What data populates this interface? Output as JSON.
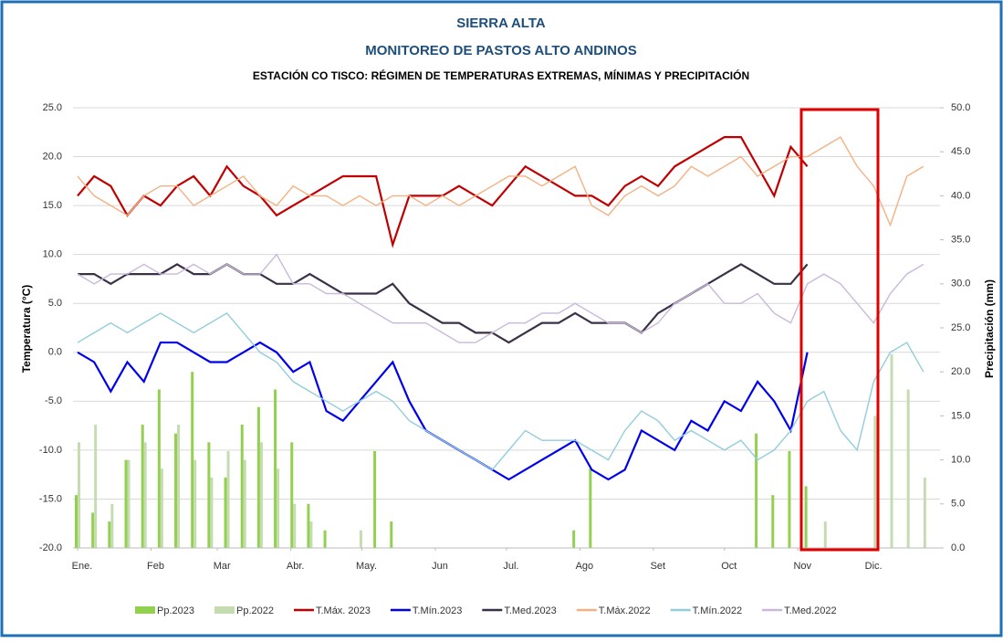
{
  "chart_data": {
    "type": "combo",
    "title": "SIERRA ALTA",
    "subtitle": "MONITOREO DE PASTOS ALTO ANDINOS",
    "caption": "ESTACIÓN CO TISCO: RÉGIMEN DE TEMPERATURAS EXTREMAS, MÍNIMAS Y PRECIPITACIÓN",
    "y_label": "Temperatura (°C)",
    "y2_label": "Precipitación (mm)",
    "x": [
      1,
      8,
      15,
      22,
      29,
      36,
      43,
      50,
      57,
      64,
      71,
      78,
      85,
      92,
      99,
      106,
      113,
      120,
      127,
      134,
      141,
      148,
      155,
      162,
      169,
      176,
      183,
      190,
      197,
      204,
      211,
      218,
      225,
      232,
      239,
      246,
      253,
      260,
      267,
      274,
      281,
      288,
      295,
      302,
      309,
      316,
      323,
      330,
      337,
      344,
      351,
      358
    ],
    "xlim": [
      1,
      365
    ],
    "xticks": [
      {
        "value": 1,
        "label": "Ene."
      },
      {
        "value": 32,
        "label": "Feb"
      },
      {
        "value": 60,
        "label": "Mar"
      },
      {
        "value": 91,
        "label": "Abr."
      },
      {
        "value": 121,
        "label": "May."
      },
      {
        "value": 152,
        "label": "Jun"
      },
      {
        "value": 182,
        "label": "Jul."
      },
      {
        "value": 213,
        "label": "Ago"
      },
      {
        "value": 244,
        "label": "Set"
      },
      {
        "value": 274,
        "label": "Oct"
      },
      {
        "value": 305,
        "label": "Nov"
      },
      {
        "value": 335,
        "label": "Dic."
      }
    ],
    "ylim": [
      -20,
      25
    ],
    "yticks": [
      {
        "value": -20,
        "label": "-20.0"
      },
      {
        "value": -15,
        "label": "-15.0"
      },
      {
        "value": -10,
        "label": "-10.0"
      },
      {
        "value": -5,
        "label": "-5.0"
      },
      {
        "value": 0,
        "label": "0.0"
      },
      {
        "value": 5,
        "label": "5.0"
      },
      {
        "value": 10,
        "label": "10.0"
      },
      {
        "value": 15,
        "label": "15.0"
      },
      {
        "value": 20,
        "label": "20.0"
      },
      {
        "value": 25,
        "label": "25.0"
      }
    ],
    "y2lim": [
      0,
      50
    ],
    "y2ticks": [
      {
        "value": 0,
        "label": "0.0"
      },
      {
        "value": 5,
        "label": "5.0"
      },
      {
        "value": 10,
        "label": "10.0"
      },
      {
        "value": 15,
        "label": "15.0"
      },
      {
        "value": 20,
        "label": "20.0"
      },
      {
        "value": 25,
        "label": "25.0"
      },
      {
        "value": 30,
        "label": "30.0"
      },
      {
        "value": 35,
        "label": "35.0"
      },
      {
        "value": 40,
        "label": "40.0"
      },
      {
        "value": 45,
        "label": "45.0"
      },
      {
        "value": 50,
        "label": "50.0"
      }
    ],
    "grid": true,
    "series": [
      {
        "name": "Pp.2023",
        "type": "bar",
        "axis": "y2",
        "color": "#92d050",
        "values": [
          6,
          4,
          3,
          10,
          14,
          18,
          13,
          20,
          12,
          8,
          14,
          16,
          18,
          12,
          5,
          2,
          0,
          0,
          11,
          3,
          0,
          0,
          0,
          0,
          0,
          0,
          0,
          0,
          0,
          0,
          2,
          9,
          0,
          0,
          0,
          0,
          0,
          0,
          0,
          0,
          0,
          13,
          6,
          11,
          7,
          null,
          null,
          null,
          null,
          null,
          null,
          null
        ]
      },
      {
        "name": "Pp.2022",
        "type": "bar",
        "axis": "y2",
        "color": "#c5dcb0",
        "values": [
          12,
          14,
          5,
          10,
          12,
          9,
          14,
          10,
          8,
          11,
          10,
          12,
          9,
          5,
          3,
          0,
          0,
          2,
          0,
          0,
          0,
          0,
          0,
          0,
          0,
          0,
          0,
          0,
          0,
          0,
          0,
          0,
          0,
          0,
          0,
          0,
          0,
          0,
          0,
          0,
          0,
          0,
          0,
          0,
          0,
          3,
          0,
          0,
          15,
          22,
          18,
          8
        ]
      },
      {
        "name": "T.Máx. 2023",
        "type": "line",
        "color": "#c00000",
        "values": [
          16,
          18,
          17,
          14,
          16,
          15,
          17,
          18,
          16,
          19,
          17,
          16,
          14,
          15,
          16,
          17,
          18,
          18,
          18,
          11,
          16,
          16,
          16,
          17,
          16,
          15,
          17,
          19,
          18,
          17,
          16,
          16,
          15,
          17,
          18,
          17,
          19,
          20,
          21,
          22,
          22,
          19,
          16,
          21,
          19,
          null,
          null,
          null,
          null,
          null,
          null,
          null
        ]
      },
      {
        "name": "T.Mín.2023",
        "type": "line",
        "color": "#0000ee",
        "values": [
          0,
          -1,
          -4,
          -1,
          -3,
          1,
          1,
          0,
          -1,
          -1,
          0,
          1,
          0,
          -2,
          -1,
          -6,
          -7,
          -5,
          -3,
          -1,
          -5,
          -8,
          -9,
          -10,
          -11,
          -12,
          -13,
          -12,
          -11,
          -10,
          -9,
          -12,
          -13,
          -12,
          -8,
          -9,
          -10,
          -7,
          -8,
          -5,
          -6,
          -3,
          -5,
          -8,
          0,
          null,
          null,
          null,
          null,
          null,
          null,
          null
        ]
      },
      {
        "name": "T.Med.2023",
        "type": "line",
        "color": "#3b3147",
        "values": [
          8,
          8,
          7,
          8,
          8,
          8,
          9,
          8,
          8,
          9,
          8,
          8,
          7,
          7,
          8,
          7,
          6,
          6,
          6,
          7,
          5,
          4,
          3,
          3,
          2,
          2,
          1,
          2,
          3,
          3,
          4,
          3,
          3,
          3,
          2,
          4,
          5,
          6,
          7,
          8,
          9,
          8,
          7,
          7,
          9,
          null,
          null,
          null,
          null,
          null,
          null,
          null
        ]
      },
      {
        "name": "T.Máx.2022",
        "type": "line",
        "color": "#f4b183",
        "values": [
          18,
          16,
          15,
          14,
          16,
          17,
          17,
          15,
          16,
          17,
          18,
          16,
          15,
          17,
          16,
          16,
          15,
          16,
          15,
          16,
          16,
          15,
          16,
          15,
          16,
          17,
          18,
          18,
          17,
          18,
          19,
          15,
          14,
          16,
          17,
          16,
          17,
          19,
          18,
          19,
          20,
          18,
          19,
          20,
          20,
          21,
          22,
          19,
          17,
          13,
          18,
          19
        ]
      },
      {
        "name": "T.Mín.2022",
        "type": "line",
        "color": "#92cddc",
        "values": [
          1,
          2,
          3,
          2,
          3,
          4,
          3,
          2,
          3,
          4,
          2,
          0,
          -1,
          -3,
          -4,
          -5,
          -6,
          -5,
          -4,
          -5,
          -7,
          -8,
          -9,
          -10,
          -11,
          -12,
          -10,
          -8,
          -9,
          -9,
          -9,
          -10,
          -11,
          -8,
          -6,
          -7,
          -9,
          -8,
          -9,
          -10,
          -9,
          -11,
          -10,
          -8,
          -5,
          -4,
          -8,
          -10,
          -3,
          0,
          1,
          -2
        ]
      },
      {
        "name": "T.Med.2022",
        "type": "line",
        "color": "#c9b8dc",
        "values": [
          8,
          7,
          8,
          8,
          9,
          8,
          8,
          9,
          8,
          9,
          8,
          8,
          10,
          7,
          7,
          6,
          6,
          5,
          4,
          3,
          3,
          3,
          2,
          1,
          1,
          2,
          3,
          3,
          4,
          4,
          5,
          4,
          3,
          3,
          2,
          3,
          5,
          6,
          7,
          5,
          5,
          6,
          4,
          3,
          7,
          8,
          7,
          5,
          3,
          6,
          8,
          9
        ]
      }
    ]
  }
}
